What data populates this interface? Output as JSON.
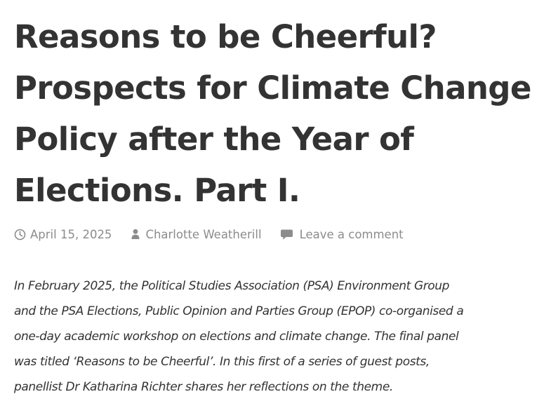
{
  "post": {
    "title_lines": [
      "Reasons to be Cheerful?",
      "Prospects for Climate Change",
      "Policy after the Year of",
      "Elections. Part I."
    ],
    "meta": {
      "date": "April 15, 2025",
      "date_icon": "clock-icon",
      "author": "Charlotte Weatherill",
      "author_icon": "user-icon",
      "comments": "Leave a comment",
      "comments_icon": "comment-bubble-icon"
    },
    "intro_lines": [
      "In February 2025, the Political Studies Association (PSA) Environment Group",
      "and the PSA Elections, Public Opinion and Parties Group (EPOP) co-organised a",
      "one-day academic workshop on elections and climate change. The final panel",
      "was titled ‘Reasons to be Cheerful’. In this first of a series of guest posts,",
      "panellist Dr Katharina Richter shares her reflections on the theme."
    ]
  },
  "colors": {
    "text": "#333333",
    "meta": "#8c8c8c",
    "background": "#ffffff"
  }
}
